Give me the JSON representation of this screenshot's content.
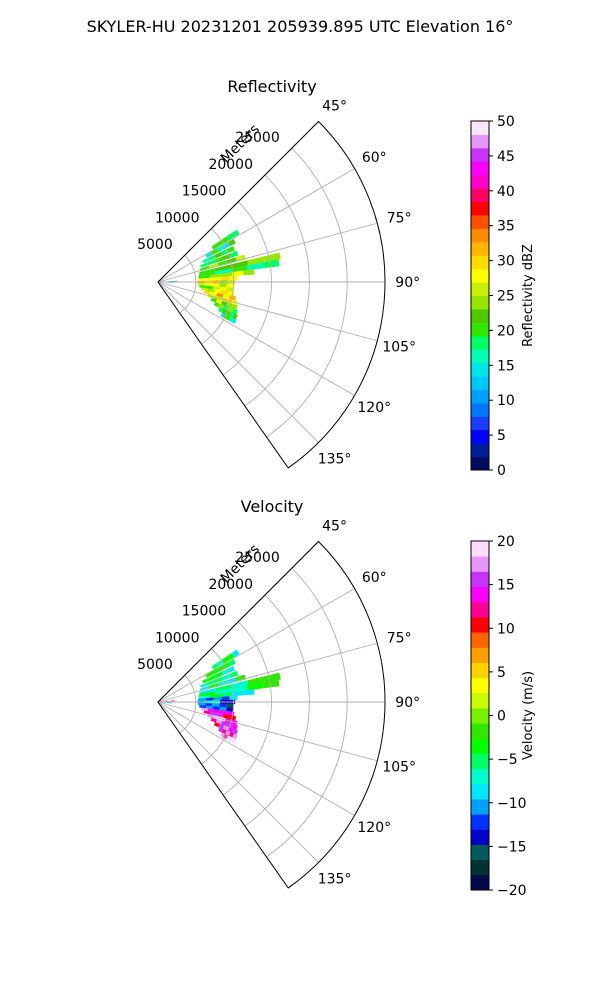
{
  "figure": {
    "title": "SKYLER-HU  20231201  205939.895 UTC Elevation 16°"
  },
  "colors": {
    "grid": "#b0b0b0",
    "frame": "#000000",
    "reflectivity_colormap": [
      "#000a60",
      "#001e9b",
      "#0000ff",
      "#1e3cff",
      "#0078ff",
      "#00a0ff",
      "#00c8ff",
      "#00e6e6",
      "#00ffb4",
      "#00ff64",
      "#32e600",
      "#50c800",
      "#96e600",
      "#c8f000",
      "#ffff00",
      "#ffdc00",
      "#ffb400",
      "#ff8c00",
      "#ff5000",
      "#ff0000",
      "#ff0064",
      "#ff00c8",
      "#ff00ff",
      "#c832ff",
      "#e696ff",
      "#ffe6ff"
    ],
    "velocity_colormap": [
      "#000a4b",
      "#003232",
      "#005a5a",
      "#0000c8",
      "#0032ff",
      "#00a0ff",
      "#00e6ff",
      "#00ffc8",
      "#00ff64",
      "#00ff00",
      "#32e600",
      "#78f000",
      "#c8ff00",
      "#ffff00",
      "#ffd200",
      "#ffa000",
      "#ff6400",
      "#ff0000",
      "#ff0096",
      "#ff00ff",
      "#c832ff",
      "#e696ff",
      "#ffdcff"
    ]
  },
  "chart_data": [
    {
      "type": "heatmap",
      "projection": "polar sector (PPI)",
      "title": "Reflectivity",
      "radial_label": "Meters",
      "radial_ticks": [
        5000,
        10000,
        15000,
        20000,
        25000
      ],
      "radial_tick_labels": [
        "5000",
        "10000",
        "15000",
        "20000",
        "25000"
      ],
      "rlim": [
        0,
        30000
      ],
      "azimuth_range_deg": [
        45,
        145
      ],
      "azimuth_ticks_deg": [
        45,
        60,
        75,
        90,
        105,
        120,
        135
      ],
      "azimuth_tick_labels": [
        "45°",
        "60°",
        "75°",
        "90°",
        "105°",
        "120°",
        "135°"
      ],
      "grid": true,
      "colorbar": {
        "label": "Reflectivity dBZ",
        "range": [
          0,
          50
        ],
        "ticks": [
          0,
          5,
          10,
          15,
          20,
          25,
          30,
          35,
          40,
          45,
          50
        ],
        "tick_labels": [
          "0",
          "5",
          "10",
          "15",
          "20",
          "25",
          "30",
          "35",
          "40",
          "45",
          "50"
        ],
        "colormap_key": "reflectivity_colormap"
      },
      "echoes": [
        {
          "az": 88,
          "r0": 100,
          "r1": 2500,
          "value": 10
        },
        {
          "az": 90,
          "r0": 200,
          "r1": 2200,
          "value": 8
        },
        {
          "az": 92,
          "r0": 300,
          "r1": 2000,
          "value": 12
        },
        {
          "az": 58,
          "r0": 8500,
          "r1": 12500,
          "value": 17,
          "shade_seed": 1
        },
        {
          "az": 62,
          "r0": 7200,
          "r1": 11500,
          "value": 18,
          "shade_seed": 2
        },
        {
          "az": 66,
          "r0": 6500,
          "r1": 11000,
          "value": 20,
          "shade_seed": 3
        },
        {
          "az": 70,
          "r0": 6000,
          "r1": 11200,
          "value": 22,
          "shade_seed": 4
        },
        {
          "az": 74,
          "r0": 5800,
          "r1": 12000,
          "value": 23,
          "shade_seed": 5
        },
        {
          "az": 78,
          "r0": 5600,
          "r1": 16500,
          "value": 22,
          "shade_seed": 6
        },
        {
          "az": 81,
          "r0": 5500,
          "r1": 16200,
          "value": 20,
          "shade_seed": 7
        },
        {
          "az": 84,
          "r0": 5400,
          "r1": 12800,
          "value": 24,
          "shade_seed": 8
        },
        {
          "az": 87,
          "r0": 5300,
          "r1": 10500,
          "value": 26,
          "shade_seed": 9
        },
        {
          "az": 90,
          "r0": 5200,
          "r1": 10200,
          "value": 28,
          "shade_seed": 10
        },
        {
          "az": 93,
          "r0": 5300,
          "r1": 10000,
          "value": 25,
          "shade_seed": 11
        },
        {
          "az": 96,
          "r0": 5500,
          "r1": 10000,
          "value": 24,
          "shade_seed": 12
        },
        {
          "az": 99,
          "r0": 5800,
          "r1": 10200,
          "value": 26,
          "shade_seed": 13
        },
        {
          "az": 102,
          "r0": 6200,
          "r1": 10500,
          "value": 30,
          "shade_seed": 14
        },
        {
          "az": 105,
          "r0": 6800,
          "r1": 10800,
          "value": 27,
          "shade_seed": 15
        },
        {
          "az": 108,
          "r0": 7400,
          "r1": 11000,
          "value": 24,
          "shade_seed": 16
        },
        {
          "az": 111,
          "r0": 8000,
          "r1": 11200,
          "value": 22,
          "shade_seed": 17
        },
        {
          "az": 114,
          "r0": 8800,
          "r1": 11400,
          "value": 19,
          "shade_seed": 18
        },
        {
          "az": 117,
          "r0": 9400,
          "r1": 11500,
          "value": 17,
          "shade_seed": 19
        }
      ]
    },
    {
      "type": "heatmap",
      "projection": "polar sector (PPI)",
      "title": "Velocity",
      "radial_label": "Meters",
      "radial_ticks": [
        5000,
        10000,
        15000,
        20000,
        25000
      ],
      "radial_tick_labels": [
        "5000",
        "10000",
        "15000",
        "20000",
        "25000"
      ],
      "rlim": [
        0,
        30000
      ],
      "azimuth_range_deg": [
        45,
        145
      ],
      "azimuth_ticks_deg": [
        45,
        60,
        75,
        90,
        105,
        120,
        135
      ],
      "azimuth_tick_labels": [
        "45°",
        "60°",
        "75°",
        "90°",
        "105°",
        "120°",
        "135°"
      ],
      "grid": true,
      "colorbar": {
        "label": "Velocity (m/s)",
        "range": [
          -20,
          20
        ],
        "ticks": [
          -20,
          -15,
          -10,
          -5,
          0,
          5,
          10,
          15,
          20
        ],
        "tick_labels": [
          "−20",
          "−15",
          "−10",
          "−5",
          "0",
          "5",
          "10",
          "15",
          "20"
        ],
        "colormap_key": "velocity_colormap"
      },
      "echoes": [
        {
          "az": 86,
          "r0": 100,
          "r1": 2200,
          "value": 16
        },
        {
          "az": 90,
          "r0": 200,
          "r1": 2000,
          "value": 14
        },
        {
          "az": 94,
          "r0": 300,
          "r1": 1800,
          "value": -12
        },
        {
          "az": 58,
          "r0": 8500,
          "r1": 12500,
          "value": -6,
          "shade_seed": 1
        },
        {
          "az": 62,
          "r0": 7200,
          "r1": 11500,
          "value": -6,
          "shade_seed": 2
        },
        {
          "az": 66,
          "r0": 6500,
          "r1": 11000,
          "value": -7,
          "shade_seed": 3
        },
        {
          "az": 70,
          "r0": 6000,
          "r1": 11200,
          "value": -6,
          "shade_seed": 4
        },
        {
          "az": 74,
          "r0": 5800,
          "r1": 12000,
          "value": -5,
          "shade_seed": 5
        },
        {
          "az": 78,
          "r0": 5600,
          "r1": 16500,
          "value": -5,
          "shade_seed": 6
        },
        {
          "az": 81,
          "r0": 5500,
          "r1": 16200,
          "value": -6,
          "shade_seed": 7
        },
        {
          "az": 84,
          "r0": 5400,
          "r1": 12800,
          "value": -7,
          "shade_seed": 8
        },
        {
          "az": 87,
          "r0": 5300,
          "r1": 10500,
          "value": -9,
          "shade_seed": 9
        },
        {
          "az": 90,
          "r0": 5200,
          "r1": 10200,
          "value": -10,
          "shade_seed": 10
        },
        {
          "az": 93,
          "r0": 5300,
          "r1": 10000,
          "value": -11,
          "shade_seed": 11
        },
        {
          "az": 96,
          "r0": 5500,
          "r1": 10000,
          "value": -12,
          "shade_seed": 12
        },
        {
          "az": 99,
          "r0": 5800,
          "r1": 10200,
          "value": 14,
          "shade_seed": 13
        },
        {
          "az": 102,
          "r0": 6200,
          "r1": 10500,
          "value": 15,
          "shade_seed": 14
        },
        {
          "az": 105,
          "r0": 6800,
          "r1": 10800,
          "value": 16,
          "shade_seed": 15
        },
        {
          "az": 108,
          "r0": 7400,
          "r1": 11000,
          "value": 15,
          "shade_seed": 16
        },
        {
          "az": 111,
          "r0": 8000,
          "r1": 11200,
          "value": 14,
          "shade_seed": 17
        },
        {
          "az": 114,
          "r0": 8800,
          "r1": 11400,
          "value": 15,
          "shade_seed": 18
        },
        {
          "az": 117,
          "r0": 9400,
          "r1": 11500,
          "value": 16,
          "shade_seed": 19
        }
      ]
    }
  ]
}
